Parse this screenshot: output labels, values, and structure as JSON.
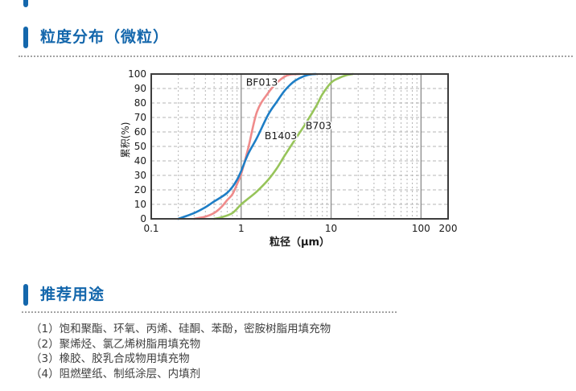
{
  "accent_color": "#1467ac",
  "sections": [
    {
      "title": "粒度分布（微粒）"
    },
    {
      "title": "推荐用途"
    }
  ],
  "uses": [
    "（1）饱和聚酯、环氧、丙烯、硅酮、苯酚，密胺树脂用填充物",
    "（2）聚烯烃、氯乙烯树脂用填充物",
    "（3）橡胶、胶乳合成物用填充物",
    "（4）阻燃壁纸、制纸涂层、内填剂"
  ],
  "chart_data": {
    "type": "line",
    "title": "",
    "xlabel": "粒径（μm）",
    "ylabel": "累积(%)",
    "x_scale": "log",
    "xlim": [
      0.1,
      200
    ],
    "ylim": [
      0,
      100
    ],
    "x_ticks": [
      "0.1",
      "1",
      "10",
      "100",
      "200"
    ],
    "x_tick_values": [
      0.1,
      1,
      10,
      100,
      200
    ],
    "y_ticks": [
      0,
      10,
      20,
      30,
      40,
      50,
      60,
      70,
      80,
      90,
      100
    ],
    "grid": "log minor dashed, decade solid",
    "legend_position": "inline-labels",
    "frame_color": "#3d3d3d",
    "decade_line_color": "#8c8c8c",
    "minor_grid_color": "#b5b5b5",
    "series": [
      {
        "name": "BF013",
        "color": "#ef8b8b",
        "label_at": [
          1.13,
          92
        ],
        "points": [
          [
            0.3,
            0
          ],
          [
            0.4,
            1.5
          ],
          [
            0.5,
            4
          ],
          [
            0.6,
            8
          ],
          [
            0.7,
            13
          ],
          [
            0.8,
            17
          ],
          [
            0.9,
            24
          ],
          [
            1.0,
            31
          ],
          [
            1.2,
            49
          ],
          [
            1.5,
            74
          ],
          [
            2.0,
            87
          ],
          [
            2.5,
            94
          ],
          [
            3.0,
            98
          ],
          [
            3.5,
            99.6
          ],
          [
            4.5,
            100
          ]
        ]
      },
      {
        "name": "B1403",
        "color": "#1e7ec6",
        "label_at": [
          1.82,
          55
        ],
        "points": [
          [
            0.2,
            0
          ],
          [
            0.3,
            4
          ],
          [
            0.4,
            8
          ],
          [
            0.5,
            12
          ],
          [
            0.6,
            15
          ],
          [
            0.7,
            18
          ],
          [
            0.8,
            22
          ],
          [
            0.9,
            27
          ],
          [
            1.0,
            33
          ],
          [
            1.2,
            45
          ],
          [
            1.5,
            56
          ],
          [
            2.0,
            72
          ],
          [
            2.5,
            81
          ],
          [
            3.0,
            88
          ],
          [
            3.5,
            92.5
          ],
          [
            4.0,
            95.5
          ],
          [
            5.0,
            98.5
          ],
          [
            6.0,
            99.8
          ],
          [
            6.8,
            100
          ]
        ]
      },
      {
        "name": "B703",
        "color": "#97c45a",
        "label_at": [
          5.2,
          62
        ],
        "points": [
          [
            0.5,
            0
          ],
          [
            0.6,
            1
          ],
          [
            0.8,
            4
          ],
          [
            1.0,
            10
          ],
          [
            1.2,
            14
          ],
          [
            1.5,
            19
          ],
          [
            2.0,
            27
          ],
          [
            2.5,
            35
          ],
          [
            3.0,
            43
          ],
          [
            4.0,
            55
          ],
          [
            5.0,
            64
          ],
          [
            6.0,
            72
          ],
          [
            7.0,
            79
          ],
          [
            8.0,
            86
          ],
          [
            10.0,
            94
          ],
          [
            12.0,
            97
          ],
          [
            15.0,
            99.3
          ],
          [
            17.5,
            100
          ]
        ]
      }
    ]
  }
}
